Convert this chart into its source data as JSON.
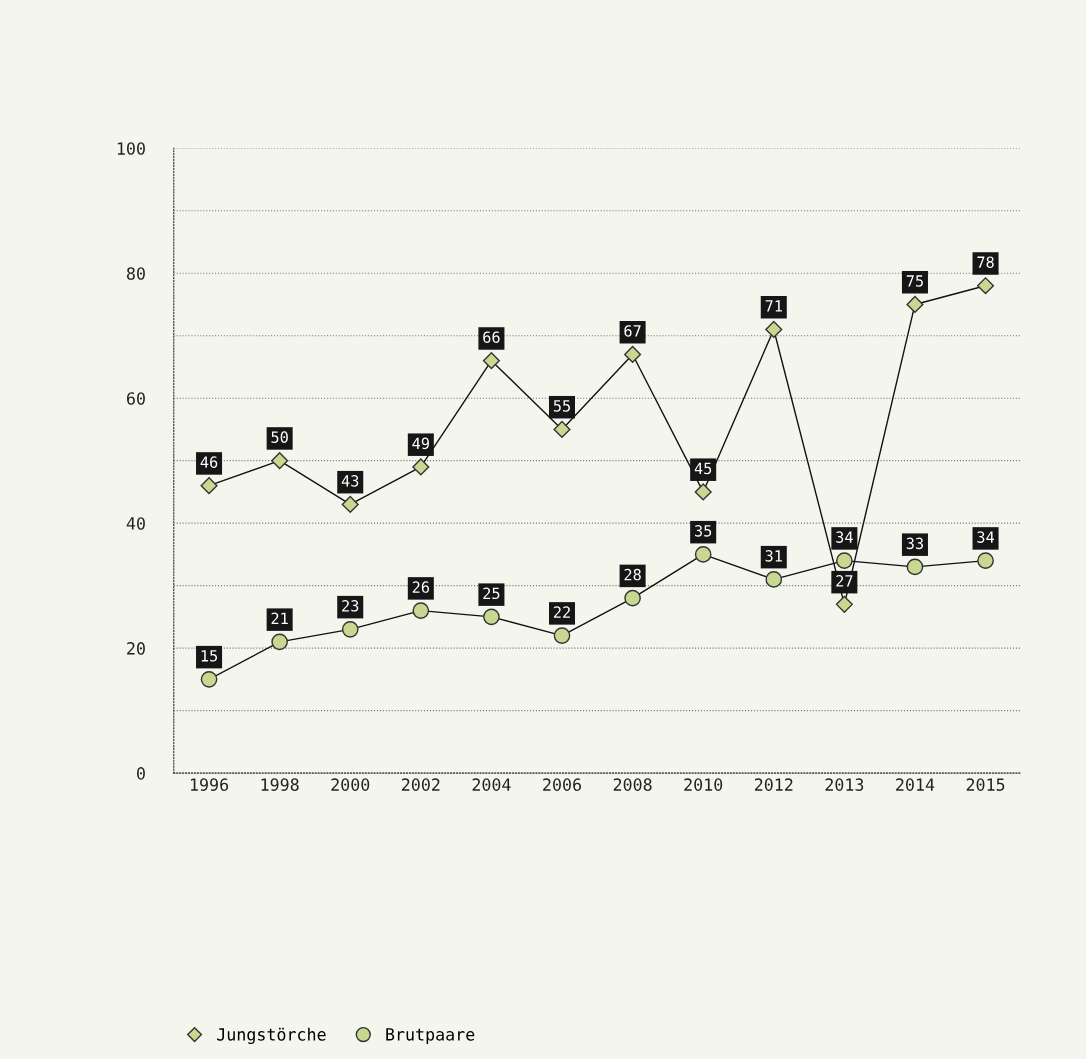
{
  "chart_data": {
    "type": "line",
    "categories": [
      "1996",
      "1998",
      "2000",
      "2002",
      "2004",
      "2006",
      "2008",
      "2010",
      "2012",
      "2013",
      "2014",
      "2015"
    ],
    "series": [
      {
        "name": "Jungstörche",
        "color": "#c8d890",
        "marker": "diamond",
        "values": [
          46,
          50,
          43,
          49,
          66,
          55,
          67,
          45,
          71,
          27,
          75,
          78
        ]
      },
      {
        "name": "Brutpaare",
        "color": "#c8d890",
        "marker": "circle",
        "values": [
          15,
          21,
          23,
          26,
          25,
          22,
          28,
          35,
          31,
          34,
          33,
          34
        ]
      }
    ],
    "ylim": [
      0,
      100
    ],
    "yticks": [
      0,
      {
        "value": 10,
        "label": null
      },
      20,
      {
        "value": 30,
        "label": null
      },
      40,
      {
        "value": 50,
        "label": null
      },
      60,
      {
        "value": 70,
        "label": null
      },
      80,
      {
        "value": 90,
        "label": null
      },
      100
    ],
    "grid": "y",
    "legend": "bottom left",
    "data_labels": true,
    "line_style": "solid"
  }
}
